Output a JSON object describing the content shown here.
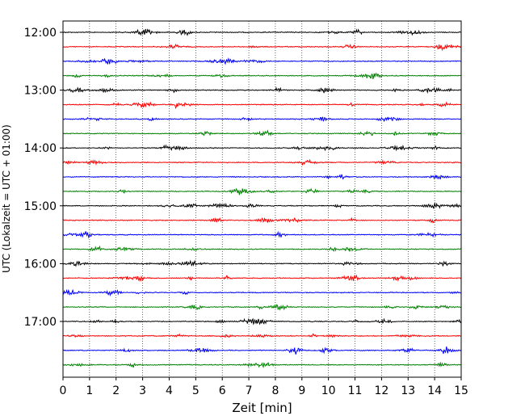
{
  "chart_data": {
    "type": "line",
    "subtype": "helicorder",
    "xlabel": "Zeit  [min]",
    "ylabel": "UTC (Lokalzeit = UTC + 01:00)",
    "xlim": [
      0,
      15
    ],
    "x_ticks": [
      "0",
      "1",
      "2",
      "3",
      "4",
      "5",
      "6",
      "7",
      "8",
      "9",
      "10",
      "11",
      "12",
      "13",
      "14",
      "15"
    ],
    "y_ticks": [
      "12:00",
      "13:00",
      "14:00",
      "15:00",
      "16:00",
      "17:00"
    ],
    "grid": "vertical dotted at each minute",
    "trace_interval_min": 15,
    "trace_colors": [
      "#000000",
      "#ff0000",
      "#0000ff",
      "#008000"
    ],
    "traces": [
      {
        "start": "12:00"
      },
      {
        "start": "12:15"
      },
      {
        "start": "12:30"
      },
      {
        "start": "12:45"
      },
      {
        "start": "13:00"
      },
      {
        "start": "13:15"
      },
      {
        "start": "13:30"
      },
      {
        "start": "13:45"
      },
      {
        "start": "14:00"
      },
      {
        "start": "14:15"
      },
      {
        "start": "14:30"
      },
      {
        "start": "14:45"
      },
      {
        "start": "15:00"
      },
      {
        "start": "15:15"
      },
      {
        "start": "15:30"
      },
      {
        "start": "15:45"
      },
      {
        "start": "16:00"
      },
      {
        "start": "16:15"
      },
      {
        "start": "16:30"
      },
      {
        "start": "16:45"
      },
      {
        "start": "17:00"
      },
      {
        "start": "17:15"
      },
      {
        "start": "17:30"
      },
      {
        "start": "17:45"
      }
    ]
  }
}
